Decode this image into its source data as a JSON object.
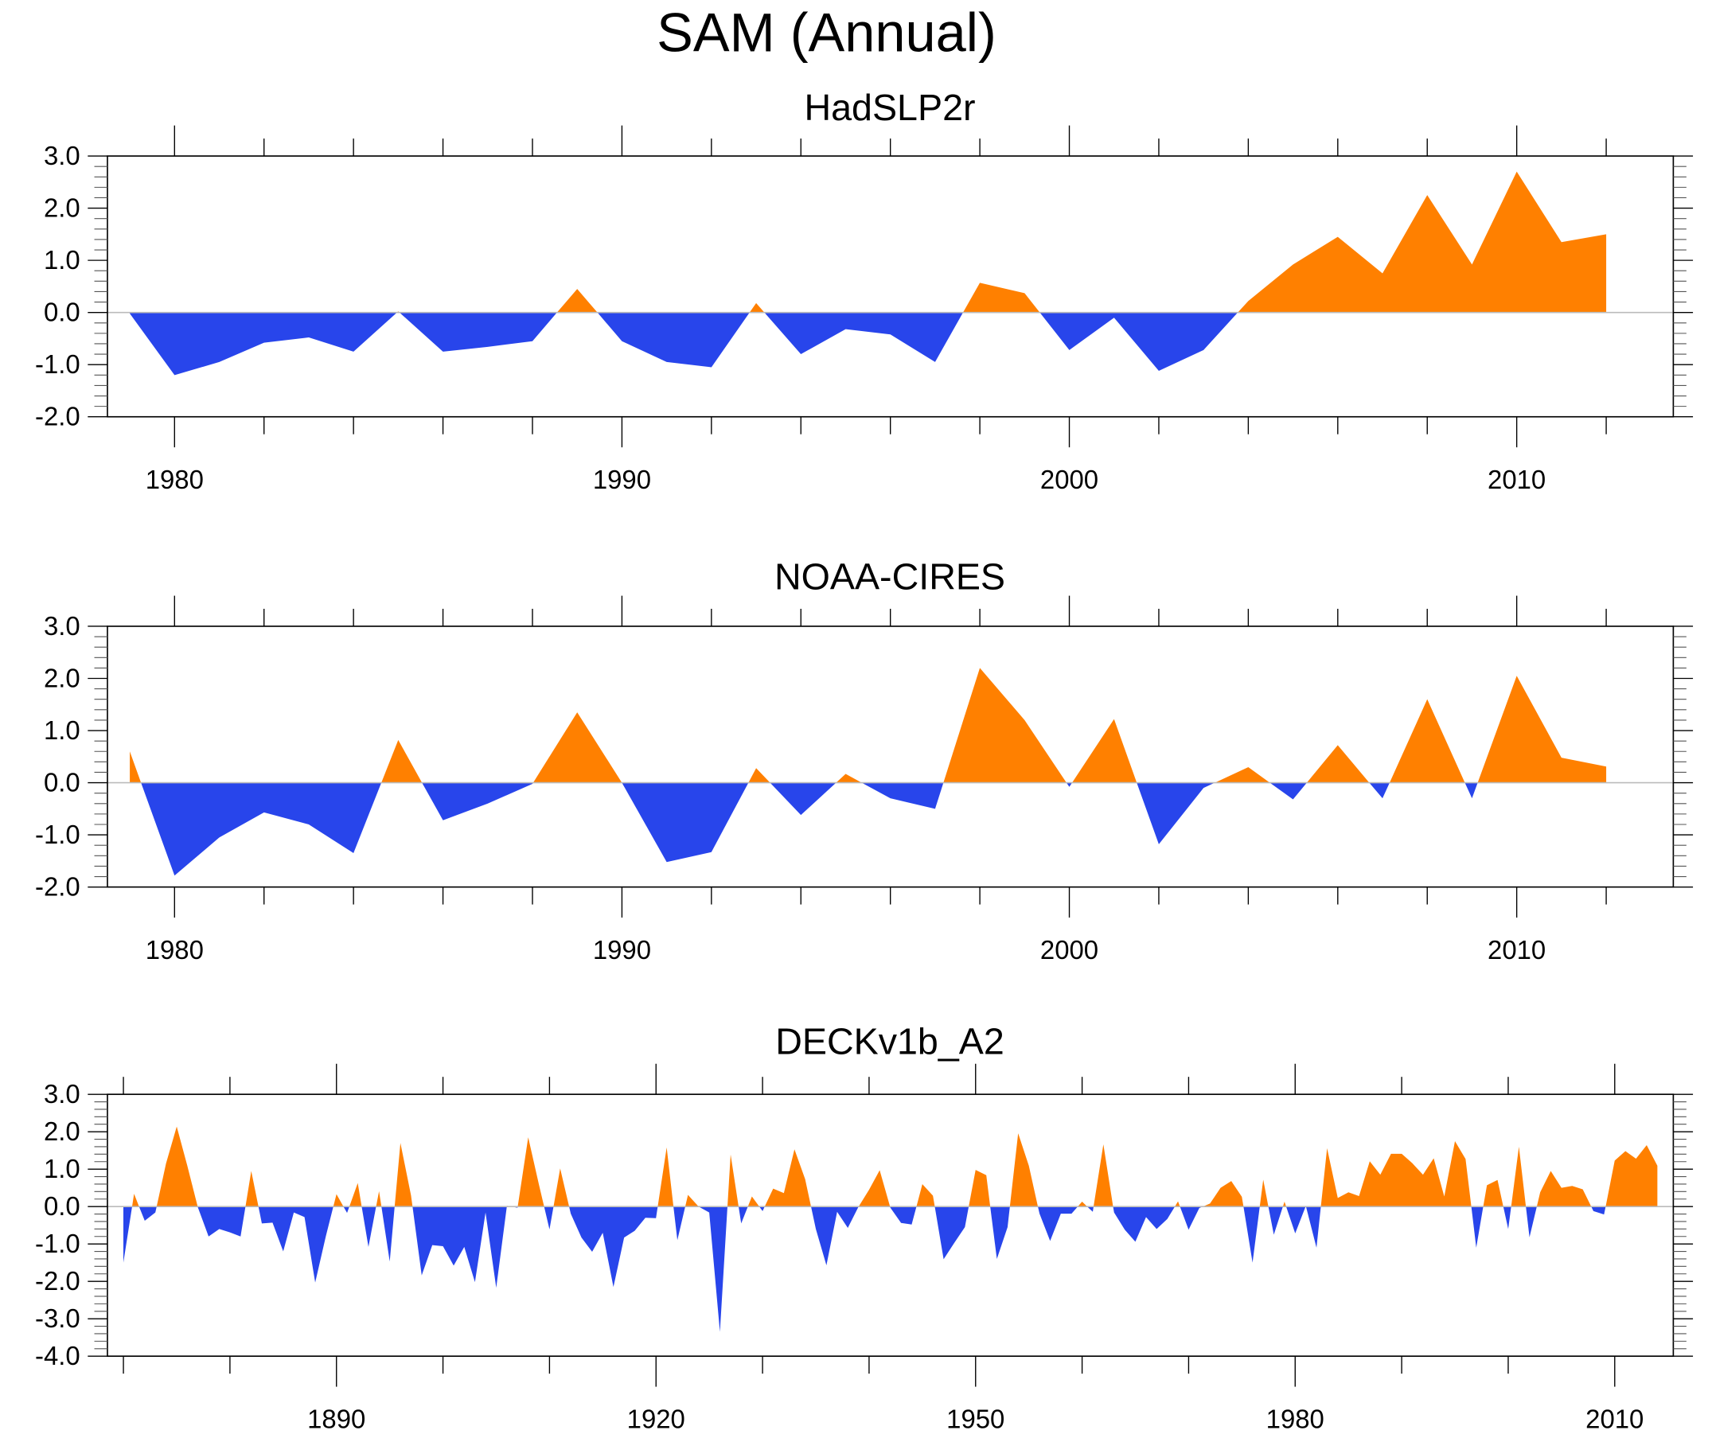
{
  "title": "SAM (Annual)",
  "colors": {
    "positive": "#FF8000",
    "negative": "#2845EB",
    "zero_line": "#BBBBBB"
  },
  "chart_data": [
    {
      "type": "area",
      "title": "HadSLP2r",
      "xlabel": "",
      "ylabel": "",
      "xlim": [
        1978.5,
        2013.5
      ],
      "ylim": [
        -2.0,
        3.0
      ],
      "ytick_labels": [
        "3.0",
        "2.0",
        "1.0",
        "0.0",
        "-1.0",
        "-2.0"
      ],
      "xtick_labels": [
        "1980",
        "1990",
        "2000",
        "2010"
      ],
      "x_major_ticks": [
        1980,
        1990,
        2000,
        2010
      ],
      "x_minor_step": 2,
      "x": [
        1979,
        1980,
        1981,
        1982,
        1983,
        1984,
        1985,
        1986,
        1987,
        1988,
        1989,
        1990,
        1991,
        1992,
        1993,
        1994,
        1995,
        1996,
        1997,
        1998,
        1999,
        2000,
        2001,
        2002,
        2003,
        2004,
        2005,
        2006,
        2007,
        2008,
        2009,
        2010,
        2011,
        2012
      ],
      "values": [
        -0.02,
        -1.2,
        -0.95,
        -0.58,
        -0.48,
        -0.75,
        0.02,
        -0.75,
        -0.66,
        -0.55,
        0.45,
        -0.55,
        -0.95,
        -1.05,
        0.18,
        -0.8,
        -0.32,
        -0.42,
        -0.95,
        0.57,
        0.37,
        -0.72,
        -0.1,
        -1.12,
        -0.72,
        0.22,
        0.92,
        1.45,
        0.75,
        2.25,
        0.92,
        2.7,
        1.35,
        1.5
      ]
    },
    {
      "type": "area",
      "title": "NOAA-CIRES",
      "xlabel": "",
      "ylabel": "",
      "xlim": [
        1978.5,
        2013.5
      ],
      "ylim": [
        -2.0,
        3.0
      ],
      "ytick_labels": [
        "3.0",
        "2.0",
        "1.0",
        "0.0",
        "-1.0",
        "-2.0"
      ],
      "xtick_labels": [
        "1980",
        "1990",
        "2000",
        "2010"
      ],
      "x_major_ticks": [
        1980,
        1990,
        2000,
        2010
      ],
      "x_minor_step": 2,
      "x": [
        1979,
        1980,
        1981,
        1982,
        1983,
        1984,
        1985,
        1986,
        1987,
        1988,
        1989,
        1990,
        1991,
        1992,
        1993,
        1994,
        1995,
        1996,
        1997,
        1998,
        1999,
        2000,
        2001,
        2002,
        2003,
        2004,
        2005,
        2006,
        2007,
        2008,
        2009,
        2010,
        2011,
        2012
      ],
      "values": [
        0.6,
        -1.78,
        -1.05,
        -0.57,
        -0.8,
        -1.35,
        0.82,
        -0.72,
        -0.4,
        -0.02,
        1.35,
        0.0,
        -1.52,
        -1.33,
        0.28,
        -0.62,
        0.17,
        -0.3,
        -0.5,
        2.2,
        1.2,
        -0.08,
        1.22,
        -1.18,
        -0.1,
        0.3,
        -0.32,
        0.72,
        -0.3,
        1.6,
        -0.3,
        2.05,
        0.48,
        0.31
      ]
    },
    {
      "type": "area",
      "title": "DECKv1b_A2",
      "xlabel": "",
      "ylabel": "",
      "xlim": [
        1868.5,
        2015.5
      ],
      "ylim": [
        -4.0,
        3.0
      ],
      "ytick_labels": [
        "3.0",
        "2.0",
        "1.0",
        "0.0",
        "-1.0",
        "-2.0",
        "-3.0",
        "-4.0"
      ],
      "xtick_labels": [
        "1890",
        "1920",
        "1950",
        "1980",
        "2010"
      ],
      "x_major_ticks": [
        1890,
        1920,
        1950,
        1980,
        2010
      ],
      "x_minor_step": 10,
      "x_start": 1870,
      "values": [
        -1.5,
        0.34,
        -0.38,
        -0.16,
        1.15,
        2.14,
        1.09,
        -0.03,
        -0.8,
        -0.6,
        -0.69,
        -0.8,
        0.95,
        -0.45,
        -0.43,
        -1.2,
        -0.16,
        -0.28,
        -2.03,
        -0.8,
        0.33,
        -0.17,
        0.63,
        -1.08,
        0.41,
        -1.47,
        1.7,
        0.3,
        -1.84,
        -1.03,
        -1.06,
        -1.58,
        -1.08,
        -2.02,
        -0.16,
        -2.17,
        0.02,
        -0.03,
        1.85,
        0.59,
        -0.61,
        1.02,
        -0.19,
        -0.83,
        -1.21,
        -0.7,
        -2.15,
        -0.83,
        -0.65,
        -0.3,
        -0.31,
        1.58,
        -0.9,
        0.31,
        0.0,
        -0.16,
        -3.35,
        1.39,
        -0.45,
        0.27,
        -0.12,
        0.48,
        0.36,
        1.53,
        0.73,
        -0.6,
        -1.57,
        -0.14,
        -0.57,
        -0.01,
        0.45,
        0.97,
        -0.03,
        -0.44,
        -0.48,
        0.6,
        0.29,
        -1.41,
        -0.97,
        -0.55,
        0.98,
        0.84,
        -1.4,
        -0.55,
        1.96,
        1.09,
        -0.19,
        -0.92,
        -0.19,
        -0.19,
        0.13,
        -0.14,
        1.66,
        -0.16,
        -0.62,
        -0.94,
        -0.28,
        -0.6,
        -0.33,
        0.14,
        -0.62,
        -0.04,
        0.08,
        0.5,
        0.68,
        0.26,
        -1.5,
        0.72,
        -0.75,
        0.13,
        -0.72,
        0.02,
        -1.1,
        1.56,
        0.23,
        0.38,
        0.28,
        1.21,
        0.85,
        1.41,
        1.41,
        1.16,
        0.85,
        1.29,
        0.27,
        1.75,
        1.27,
        -1.1,
        0.57,
        0.71,
        -0.6,
        1.6,
        -0.82,
        0.38,
        0.95,
        0.5,
        0.55,
        0.46,
        -0.12,
        -0.21,
        1.23,
        1.48,
        1.28,
        1.64,
        1.09
      ]
    }
  ]
}
